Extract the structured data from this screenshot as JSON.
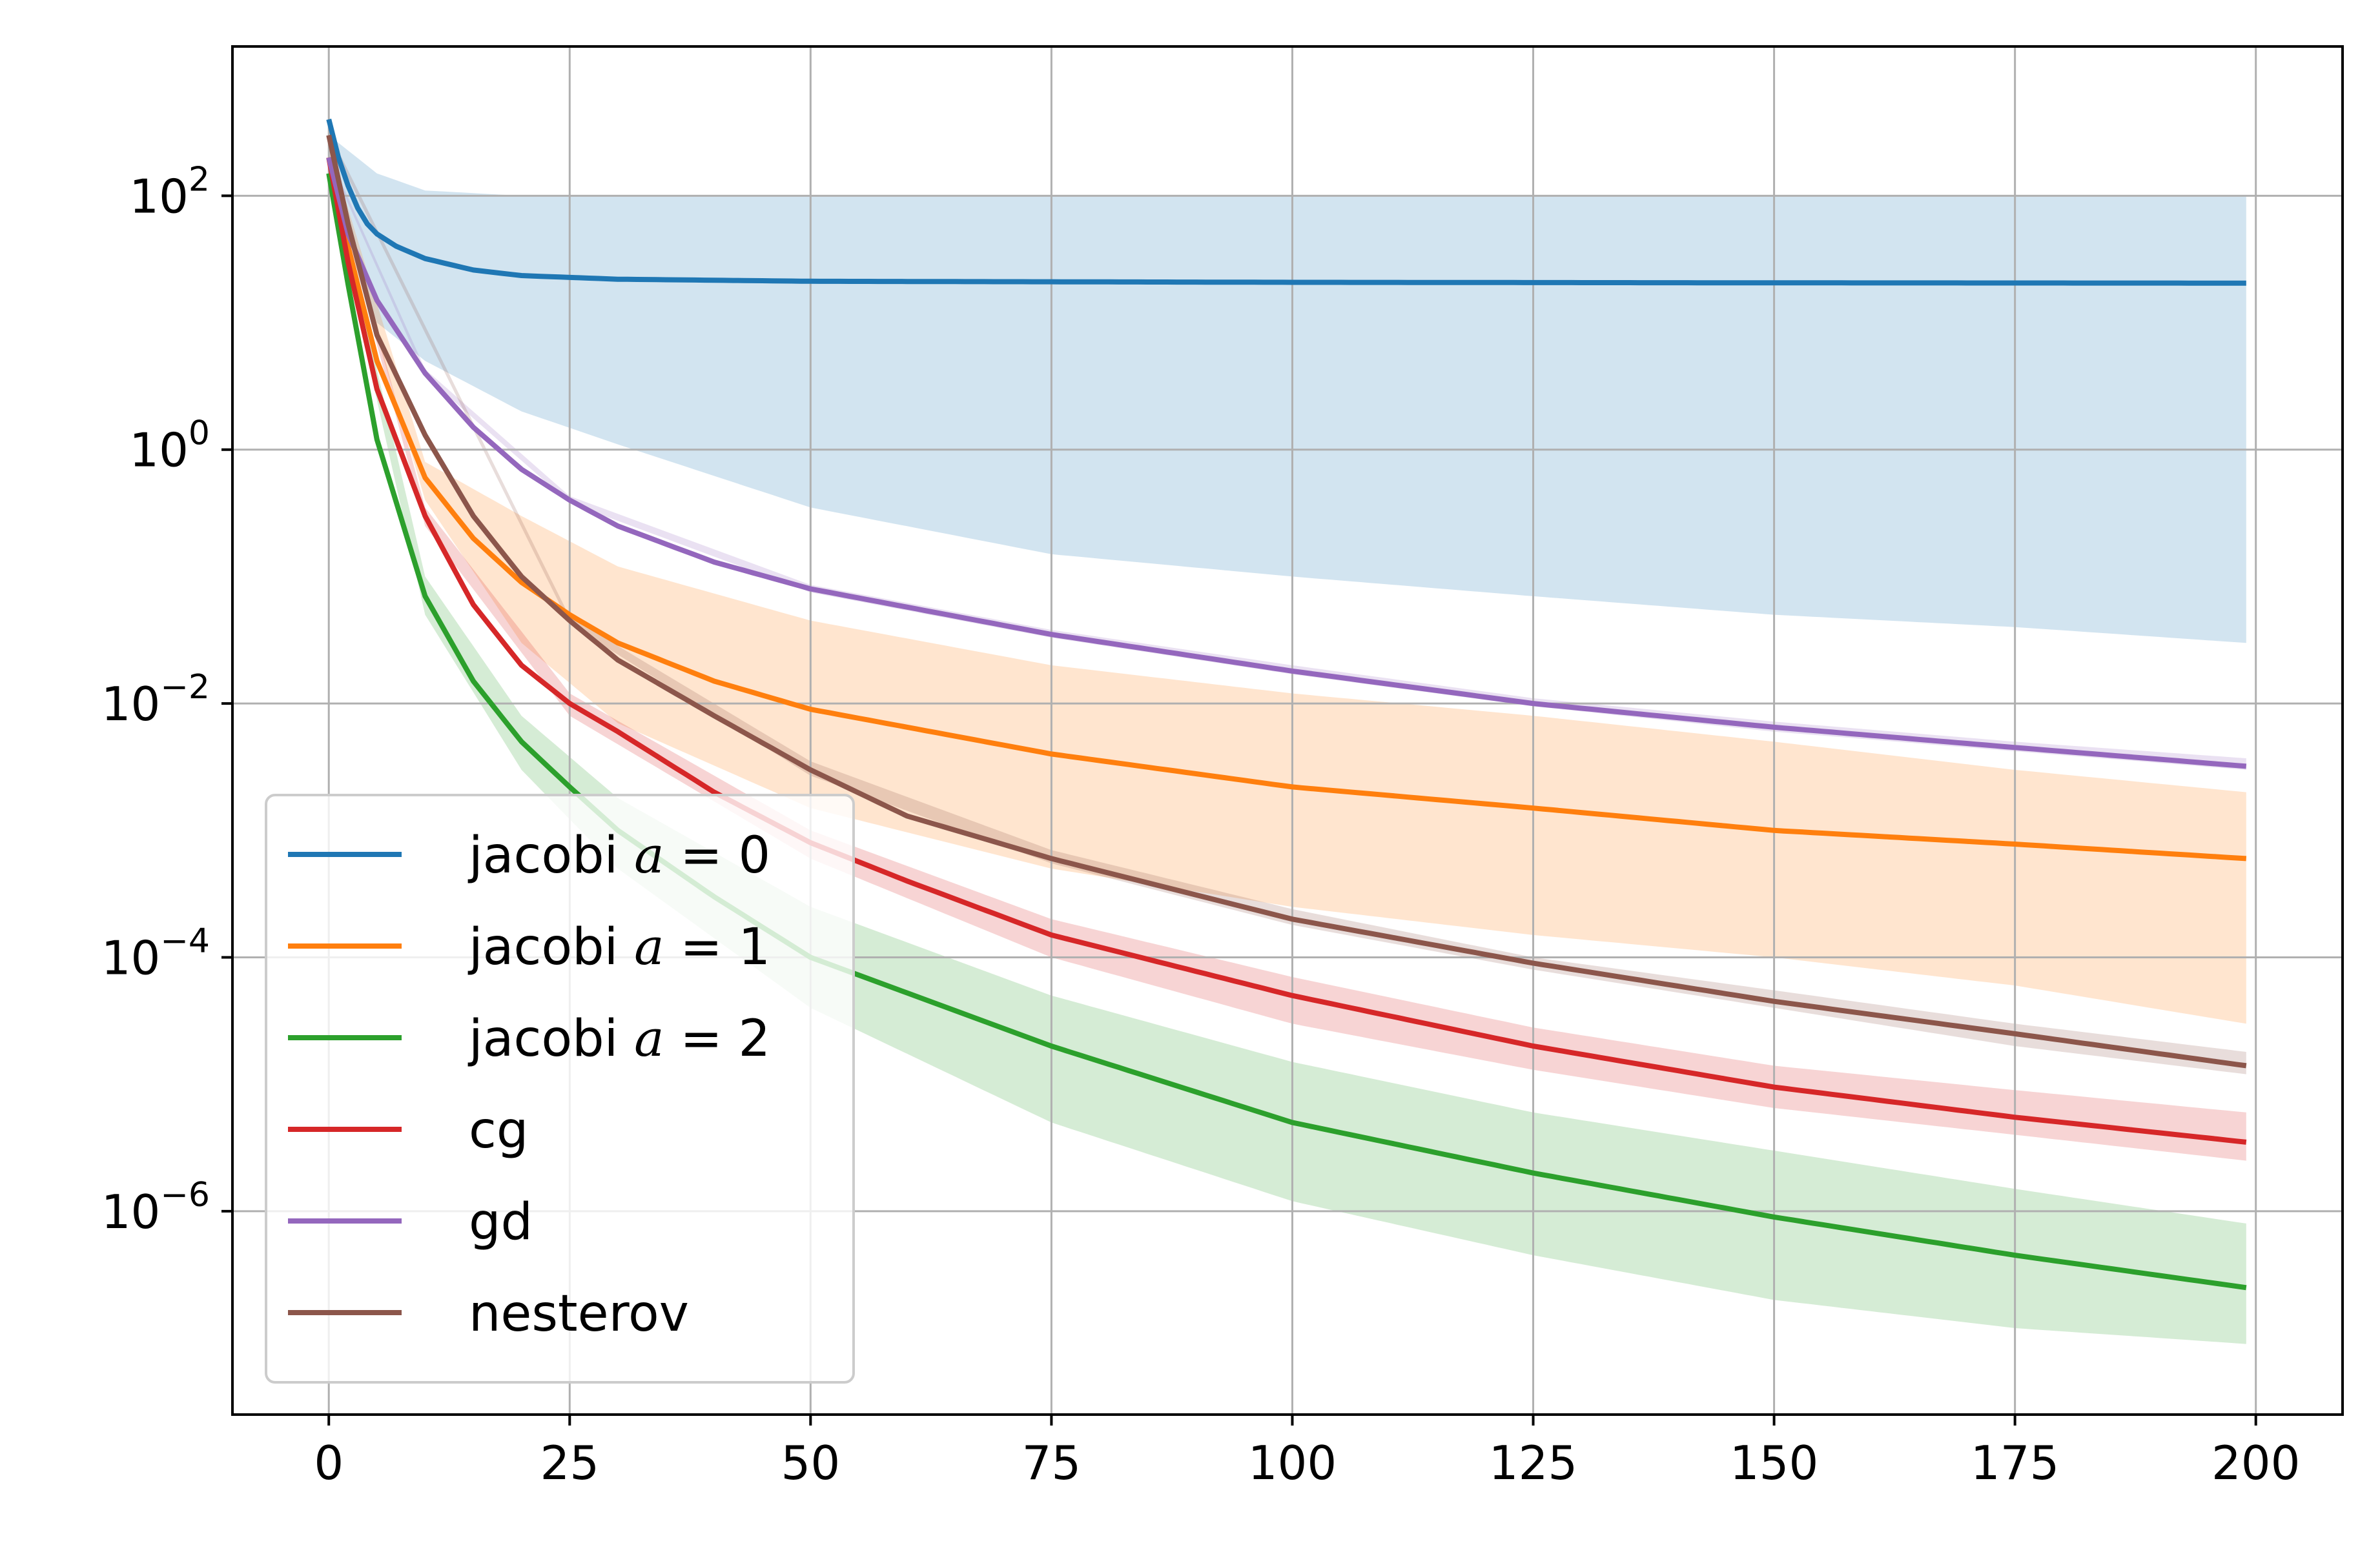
{
  "chart_data": {
    "type": "line",
    "title": "",
    "xlabel": "",
    "ylabel": "",
    "x_scale": "linear",
    "y_scale": "log",
    "xlim": [
      -10,
      209
    ],
    "ylim": [
      2.5e-08,
      1500
    ],
    "grid": true,
    "legend_position": "lower-left",
    "x_ticks": [
      0,
      25,
      50,
      75,
      100,
      125,
      150,
      175,
      200
    ],
    "x_tick_labels": [
      "0",
      "25",
      "50",
      "75",
      "100",
      "125",
      "150",
      "175",
      "200"
    ],
    "y_ticks": [
      100.0,
      1.0,
      0.01,
      0.0001,
      1e-06
    ],
    "y_tick_labels": [
      {
        "base": "10",
        "exp": "2"
      },
      {
        "base": "10",
        "exp": "0"
      },
      {
        "base": "10",
        "exp": "−2"
      },
      {
        "base": "10",
        "exp": "−4"
      },
      {
        "base": "10",
        "exp": "−6"
      }
    ],
    "series": [
      {
        "name": "jacobi a=0",
        "legend_text": "jacobi ",
        "legend_math": "a",
        "legend_math_rest": " = 0",
        "color": "#1f77b4",
        "x": [
          0,
          1,
          2,
          3,
          4,
          5,
          7,
          10,
          15,
          20,
          30,
          50,
          75,
          100,
          150,
          199
        ],
        "y": [
          400,
          200,
          120,
          80,
          60,
          50,
          40,
          32,
          26,
          23.5,
          22,
          21.2,
          21,
          20.8,
          20.6,
          20.5
        ],
        "band_x": [
          0,
          5,
          10,
          20,
          30,
          50,
          75,
          100,
          125,
          150,
          175,
          199
        ],
        "band_lower": [
          150,
          10,
          5,
          2,
          1.1,
          0.35,
          0.15,
          0.1,
          0.07,
          0.05,
          0.04,
          0.03
        ],
        "band_upper": [
          300,
          150,
          110,
          100,
          100,
          100,
          100,
          100,
          100,
          100,
          100,
          100
        ]
      },
      {
        "name": "jacobi a=1",
        "legend_text": "jacobi ",
        "legend_math": "a",
        "legend_math_rest": " = 1",
        "color": "#ff7f0e",
        "x": [
          0,
          2,
          5,
          10,
          15,
          20,
          25,
          30,
          40,
          50,
          75,
          100,
          125,
          150,
          175,
          199
        ],
        "y": [
          200,
          40,
          5,
          0.6,
          0.2,
          0.09,
          0.05,
          0.03,
          0.015,
          0.009,
          0.004,
          0.0022,
          0.0015,
          0.001,
          0.00078,
          0.0006
        ],
        "band_x": [
          0,
          10,
          20,
          30,
          50,
          75,
          100,
          125,
          150,
          175,
          199
        ],
        "band_lower": [
          150,
          0.4,
          0.03,
          0.007,
          0.0015,
          0.0005,
          0.00025,
          0.00015,
          0.0001,
          6e-05,
          3e-05
        ],
        "band_upper": [
          250,
          0.8,
          0.3,
          0.12,
          0.045,
          0.02,
          0.012,
          0.008,
          0.005,
          0.003,
          0.002
        ]
      },
      {
        "name": "jacobi a=2",
        "legend_text": "jacobi ",
        "legend_math": "a",
        "legend_math_rest": " = 2",
        "color": "#2ca02c",
        "x": [
          0,
          2,
          5,
          10,
          15,
          20,
          25,
          30,
          40,
          50,
          75,
          100,
          125,
          150,
          175,
          199
        ],
        "y": [
          150,
          20,
          1.2,
          0.07,
          0.015,
          0.005,
          0.0022,
          0.001,
          0.0003,
          0.0001,
          2e-05,
          5e-06,
          2e-06,
          9e-07,
          4.5e-07,
          2.5e-07
        ],
        "band_x": [
          0,
          10,
          20,
          30,
          50,
          75,
          100,
          125,
          150,
          175,
          199
        ],
        "band_lower": [
          120,
          0.05,
          0.003,
          0.0005,
          4e-05,
          5e-06,
          1.2e-06,
          4.5e-07,
          2e-07,
          1.2e-07,
          9e-08
        ],
        "band_upper": [
          180,
          0.1,
          0.008,
          0.0018,
          0.00025,
          5e-05,
          1.5e-05,
          6e-06,
          3e-06,
          1.5e-06,
          8e-07
        ]
      },
      {
        "name": "cg",
        "legend_text": "cg",
        "legend_math": "",
        "legend_math_rest": "",
        "color": "#d62728",
        "x": [
          0,
          2,
          5,
          10,
          15,
          20,
          25,
          30,
          40,
          50,
          60,
          75,
          100,
          125,
          150,
          175,
          199
        ],
        "y": [
          200,
          30,
          3,
          0.3,
          0.06,
          0.02,
          0.01,
          0.006,
          0.002,
          0.0008,
          0.0004,
          0.00015,
          5e-05,
          2e-05,
          9.5e-06,
          5.5e-06,
          3.5e-06
        ],
        "band_x": [
          0,
          10,
          25,
          50,
          75,
          100,
          125,
          150,
          175,
          199
        ],
        "band_lower": [
          180,
          0.25,
          0.008,
          0.0006,
          0.0001,
          3e-05,
          1.3e-05,
          6.5e-06,
          4e-06,
          2.5e-06
        ],
        "band_upper": [
          220,
          0.35,
          0.012,
          0.001,
          0.0002,
          7e-05,
          2.8e-05,
          1.4e-05,
          9e-06,
          6e-06
        ]
      },
      {
        "name": "gd",
        "legend_text": "gd",
        "legend_math": "",
        "legend_math_rest": "",
        "color": "#9467bd",
        "x": [
          0,
          2,
          5,
          10,
          15,
          20,
          25,
          30,
          40,
          50,
          75,
          100,
          125,
          150,
          175,
          199
        ],
        "y": [
          200,
          50,
          15,
          4,
          1.5,
          0.7,
          0.4,
          0.25,
          0.13,
          0.08,
          0.035,
          0.018,
          0.01,
          0.0065,
          0.0045,
          0.0032
        ],
        "band_x": [
          0,
          10,
          25,
          50,
          75,
          100,
          125,
          150,
          175,
          199
        ],
        "band_lower": [
          190,
          3.8,
          0.38,
          0.075,
          0.033,
          0.017,
          0.0095,
          0.006,
          0.0042,
          0.003
        ],
        "band_upper": [
          210,
          4.3,
          0.43,
          0.086,
          0.038,
          0.02,
          0.011,
          0.0072,
          0.005,
          0.0037
        ]
      },
      {
        "name": "nesterov",
        "legend_text": "nesterov",
        "legend_math": "",
        "legend_math_rest": "",
        "color": "#8c564b",
        "x": [
          0,
          2,
          5,
          10,
          15,
          20,
          25,
          30,
          40,
          50,
          60,
          75,
          100,
          125,
          150,
          175,
          199
        ],
        "y": [
          300,
          60,
          8,
          1.3,
          0.3,
          0.1,
          0.045,
          0.022,
          0.008,
          0.003,
          0.0013,
          0.0006,
          0.0002,
          9e-05,
          4.5e-05,
          2.5e-05,
          1.4e-05
        ],
        "band_x": [
          0,
          25,
          50,
          75,
          100,
          125,
          150,
          175,
          199
        ],
        "band_lower": [
          280,
          0.042,
          0.0027,
          0.00055,
          0.00018,
          8e-05,
          4e-05,
          2e-05,
          1.2e-05
        ],
        "band_upper": [
          320,
          0.048,
          0.0035,
          0.0007,
          0.00024,
          0.0001,
          5.5e-05,
          3e-05,
          1.8e-05
        ]
      }
    ]
  }
}
